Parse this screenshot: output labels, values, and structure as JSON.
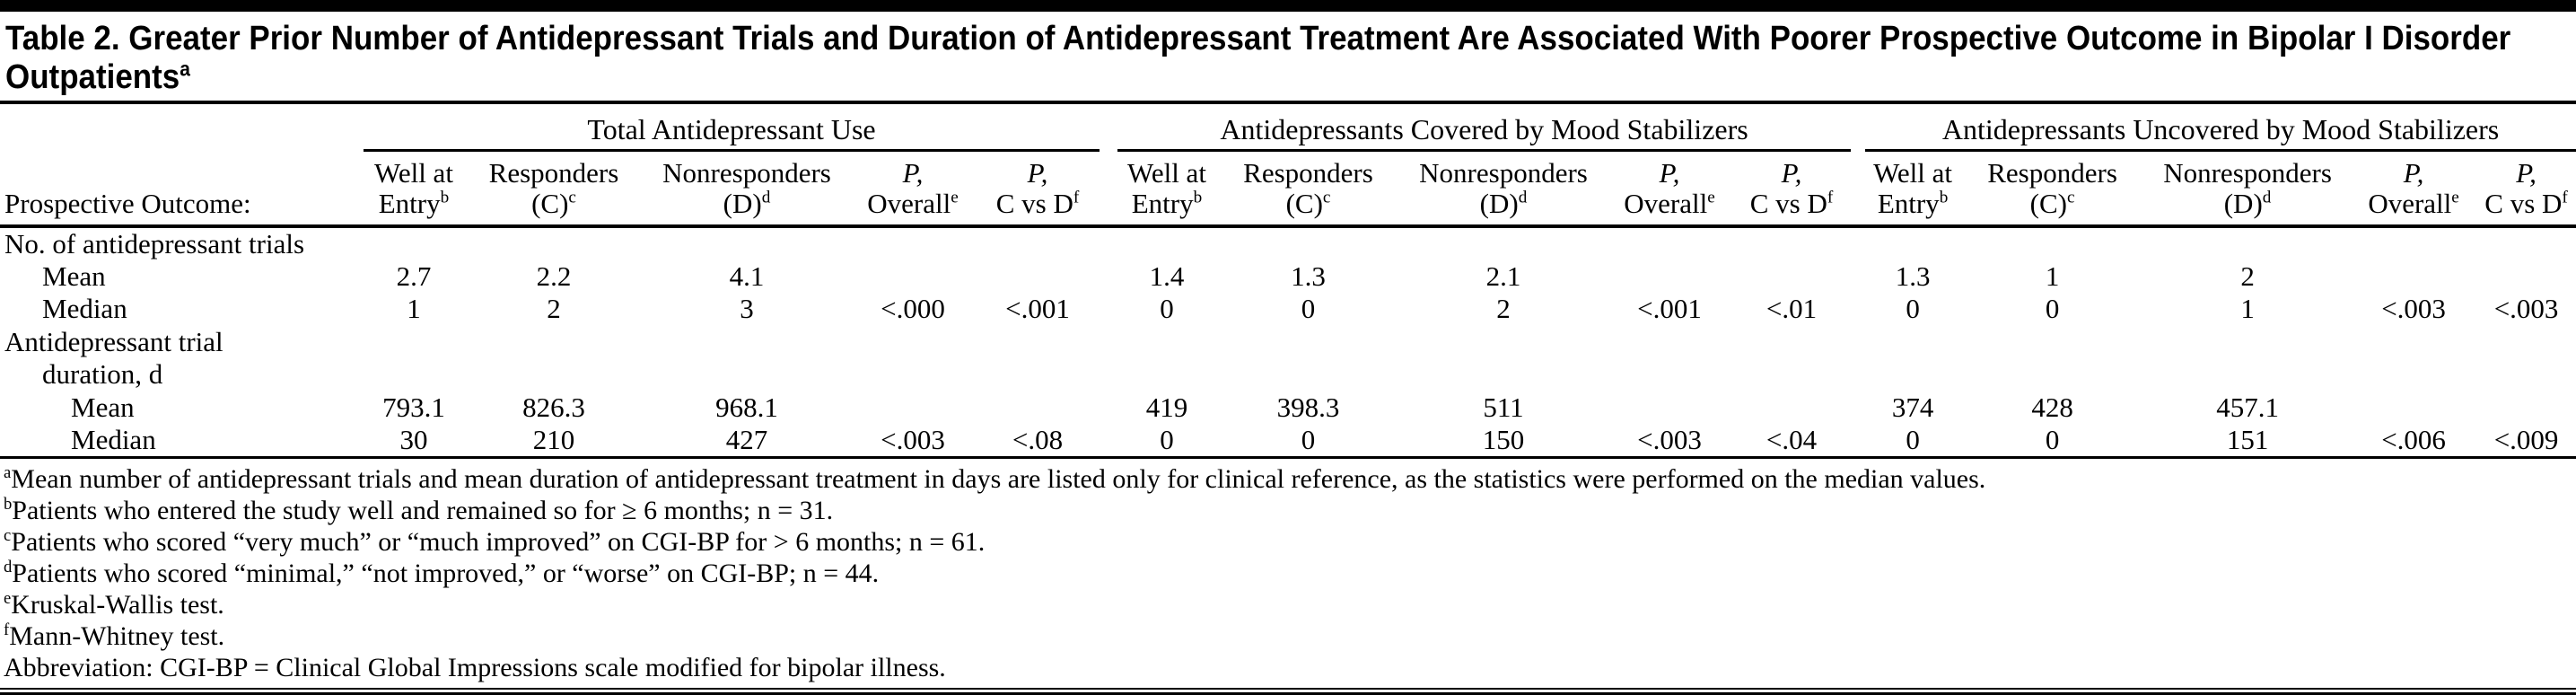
{
  "title": {
    "line1": "Table 2. Greater Prior Number of Antidepressant Trials and Duration of Antidepressant Treatment Are Associated With Poorer Prospective Outcome in Bipolar I Disorder",
    "line2": "Outpatients",
    "superscript": "a"
  },
  "table": {
    "row_header_label": "Prospective Outcome:",
    "groups": [
      {
        "label": "Total Antidepressant Use"
      },
      {
        "label": "Antidepressants Covered by Mood Stabilizers"
      },
      {
        "label": "Antidepressants Uncovered by Mood Stabilizers"
      }
    ],
    "subcolumns": [
      {
        "line1": "Well at",
        "line2": "Entry",
        "sup": "b",
        "italic1": false
      },
      {
        "line1": "Responders",
        "line2": "(C)",
        "sup": "c",
        "italic1": false
      },
      {
        "line1": "Nonresponders",
        "line2": "(D)",
        "sup": "d",
        "italic1": false
      },
      {
        "line1": "P,",
        "line2": "Overall",
        "sup": "e",
        "italic1": true
      },
      {
        "line1": "P,",
        "line2": "C vs D",
        "sup": "f",
        "italic1": true
      }
    ],
    "rows": [
      {
        "type": "section",
        "indent": 0,
        "label_lines": [
          "No. of antidepressant trials"
        ],
        "cells": [
          "",
          "",
          "",
          "",
          "",
          "",
          "",
          "",
          "",
          "",
          "",
          "",
          "",
          "",
          ""
        ]
      },
      {
        "type": "data",
        "indent": 1,
        "label_lines": [
          "Mean"
        ],
        "cells": [
          "2.7",
          "2.2",
          "4.1",
          "",
          "",
          "1.4",
          "1.3",
          "2.1",
          "",
          "",
          "1.3",
          "1",
          "2",
          "",
          ""
        ]
      },
      {
        "type": "data",
        "indent": 1,
        "label_lines": [
          "Median"
        ],
        "cells": [
          "1",
          "2",
          "3",
          "<.000",
          "<.001",
          "0",
          "0",
          "2",
          "<.001",
          "<.01",
          "0",
          "0",
          "1",
          "<.003",
          "<.003"
        ]
      },
      {
        "type": "section",
        "indent": 0,
        "label_lines": [
          "Antidepressant trial",
          "duration, d"
        ],
        "cells": [
          "",
          "",
          "",
          "",
          "",
          "",
          "",
          "",
          "",
          "",
          "",
          "",
          "",
          "",
          ""
        ]
      },
      {
        "type": "data",
        "indent": 2,
        "label_lines": [
          "Mean"
        ],
        "cells": [
          "793.1",
          "826.3",
          "968.1",
          "",
          "",
          "419",
          "398.3",
          "511",
          "",
          "",
          "374",
          "428",
          "457.1",
          "",
          ""
        ]
      },
      {
        "type": "data",
        "indent": 2,
        "label_lines": [
          "Median"
        ],
        "cells": [
          "30",
          "210",
          "427",
          "<.003",
          "<.08",
          "0",
          "0",
          "150",
          "<.003",
          "<.04",
          "0",
          "0",
          "151",
          "<.006",
          "<.009"
        ]
      }
    ]
  },
  "footnotes": [
    {
      "sup": "a",
      "text": "Mean number of antidepressant trials and mean duration of antidepressant treatment in days are listed only for clinical reference, as the statistics were performed on the median values."
    },
    {
      "sup": "b",
      "text": "Patients who entered the study well and remained so for ≥ 6 months; n = 31."
    },
    {
      "sup": "c",
      "text": "Patients who scored “very much” or “much improved” on CGI-BP for > 6 months; n = 61."
    },
    {
      "sup": "d",
      "text": "Patients who scored “minimal,” “not improved,” or “worse” on CGI-BP; n = 44."
    },
    {
      "sup": "e",
      "text": "Kruskal-Wallis test."
    },
    {
      "sup": "f",
      "text": "Mann-Whitney test."
    },
    {
      "sup": "",
      "text": "Abbreviation: CGI-BP = Clinical Global Impressions scale modified for bipolar illness."
    }
  ]
}
